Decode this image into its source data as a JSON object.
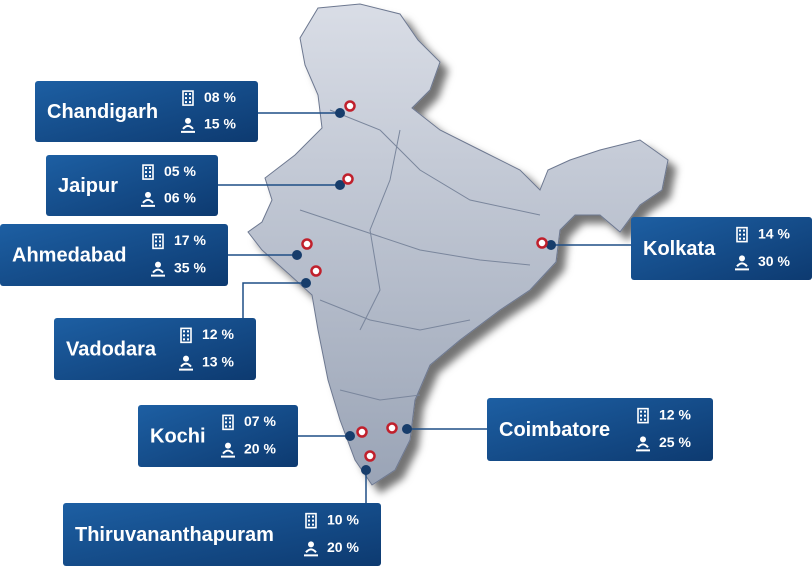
{
  "cities": [
    {
      "name": "Chandigarh",
      "offices": "08 %",
      "people": "15 %"
    },
    {
      "name": "Jaipur",
      "offices": "05 %",
      "people": "06 %"
    },
    {
      "name": "Ahmedabad",
      "offices": "17 %",
      "people": "35 %"
    },
    {
      "name": "Vadodara",
      "offices": "12 %",
      "people": "13 %"
    },
    {
      "name": "Kochi",
      "offices": "07 %",
      "people": "20 %"
    },
    {
      "name": "Coimbatore",
      "offices": "12 %",
      "people": "25 %"
    },
    {
      "name": "Kolkata",
      "offices": "14 %",
      "people": "30 %"
    },
    {
      "name": "Thiruvananthapuram",
      "offices": "10 %",
      "people": "20 %"
    }
  ]
}
